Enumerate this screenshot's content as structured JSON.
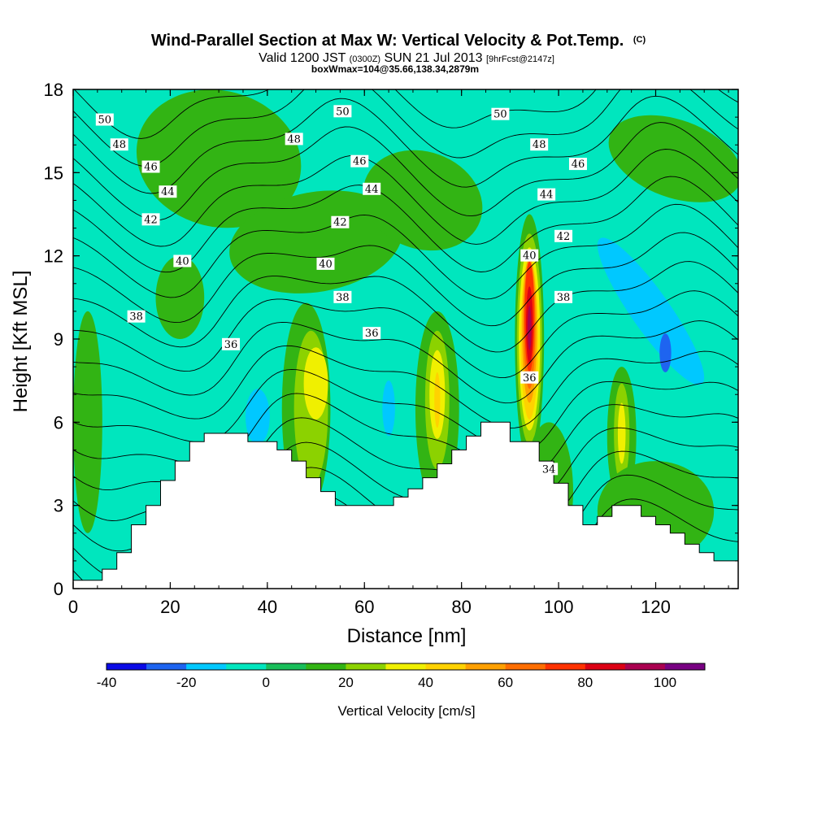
{
  "header": {
    "title": "Wind-Parallel Section at Max W: Vertical Velocity & Pot.Temp.",
    "copyright": "(C)",
    "valid_prefix": "Valid 1200 JST",
    "valid_zulu": "(0300Z)",
    "valid_date": "SUN 21 Jul 2013",
    "forecast": "[9hrFcst@2147z]",
    "box_info": "boxWmax=104@35.66,138.34,2879m"
  },
  "chart_data": {
    "type": "heatmap",
    "title": "Wind-Parallel Section at Max W: Vertical Velocity & Pot.Temp.",
    "xlabel": "Distance [nm]",
    "ylabel": "Height [Kft MSL]",
    "xlim": [
      0,
      137
    ],
    "ylim": [
      0,
      18
    ],
    "x_ticks": [
      "0",
      "20",
      "40",
      "60",
      "80",
      "100",
      "120"
    ],
    "y_ticks": [
      "0",
      "3",
      "6",
      "9",
      "12",
      "15",
      "18"
    ],
    "colorbar": {
      "label": "Vertical Velocity [cm/s]",
      "tick_labels": [
        "-40",
        "-20",
        "0",
        "20",
        "40",
        "60",
        "80",
        "100"
      ],
      "levels": [
        -40,
        -30,
        -20,
        -10,
        0,
        10,
        20,
        30,
        40,
        50,
        60,
        70,
        80,
        90,
        100,
        110
      ],
      "colors": [
        "#0a0ae6",
        "#1e64f0",
        "#00c8ff",
        "#00e6be",
        "#19be5a",
        "#32b414",
        "#8cd200",
        "#f0f000",
        "#ffd200",
        "#ffa000",
        "#ff6e00",
        "#ff3200",
        "#dc0014",
        "#aa0050",
        "#780082"
      ]
    },
    "terrain": [
      [
        0,
        0.3
      ],
      [
        6,
        0.3
      ],
      [
        6,
        0.7
      ],
      [
        9,
        0.7
      ],
      [
        9,
        1.3
      ],
      [
        12,
        1.3
      ],
      [
        12,
        2.3
      ],
      [
        15,
        2.3
      ],
      [
        15,
        3.0
      ],
      [
        18,
        3.0
      ],
      [
        18,
        3.9
      ],
      [
        21,
        3.9
      ],
      [
        21,
        4.6
      ],
      [
        24,
        4.6
      ],
      [
        24,
        5.3
      ],
      [
        27,
        5.3
      ],
      [
        27,
        5.6
      ],
      [
        36,
        5.6
      ],
      [
        36,
        5.3
      ],
      [
        42,
        5.3
      ],
      [
        42,
        5.0
      ],
      [
        45,
        5.0
      ],
      [
        45,
        4.6
      ],
      [
        48,
        4.6
      ],
      [
        48,
        4.0
      ],
      [
        51,
        4.0
      ],
      [
        51,
        3.5
      ],
      [
        54,
        3.5
      ],
      [
        54,
        3.0
      ],
      [
        66,
        3.0
      ],
      [
        66,
        3.3
      ],
      [
        69,
        3.3
      ],
      [
        69,
        3.6
      ],
      [
        72,
        3.6
      ],
      [
        72,
        4.0
      ],
      [
        75,
        4.0
      ],
      [
        75,
        4.5
      ],
      [
        78,
        4.5
      ],
      [
        78,
        5.0
      ],
      [
        81,
        5.0
      ],
      [
        81,
        5.5
      ],
      [
        84,
        5.5
      ],
      [
        84,
        6.0
      ],
      [
        90,
        6.0
      ],
      [
        90,
        5.3
      ],
      [
        96,
        5.3
      ],
      [
        96,
        4.6
      ],
      [
        99,
        4.6
      ],
      [
        99,
        3.8
      ],
      [
        102,
        3.8
      ],
      [
        102,
        3.0
      ],
      [
        105,
        3.0
      ],
      [
        105,
        2.3
      ],
      [
        108,
        2.3
      ],
      [
        108,
        2.6
      ],
      [
        111,
        2.6
      ],
      [
        111,
        3.0
      ],
      [
        117,
        3.0
      ],
      [
        117,
        2.6
      ],
      [
        120,
        2.6
      ],
      [
        120,
        2.3
      ],
      [
        123,
        2.3
      ],
      [
        123,
        2.0
      ],
      [
        126,
        2.0
      ],
      [
        126,
        1.6
      ],
      [
        129,
        1.6
      ],
      [
        129,
        1.3
      ],
      [
        132,
        1.3
      ],
      [
        132,
        1.0
      ],
      [
        137,
        1.0
      ]
    ],
    "w_features": [
      {
        "value": 10,
        "x": 30,
        "y": 15.5,
        "rx": 14,
        "ry": 3,
        "rot": -75
      },
      {
        "value": 10,
        "x": 22,
        "y": 10.5,
        "rx": 5,
        "ry": 1.5,
        "rot": 0
      },
      {
        "value": 10,
        "x": 50,
        "y": 12.5,
        "rx": 18,
        "ry": 1.8,
        "rot": -10
      },
      {
        "value": 10,
        "x": 72,
        "y": 14.0,
        "rx": 10,
        "ry": 2.2,
        "rot": -70
      },
      {
        "value": 10,
        "x": 124,
        "y": 15.5,
        "rx": 8,
        "ry": 2.5,
        "rot": -70
      },
      {
        "value": 10,
        "x": 3,
        "y": 6.0,
        "rx": 3,
        "ry": 4,
        "rot": 0
      },
      {
        "value": -10,
        "x": 118,
        "y": 10.5,
        "rx": 7,
        "ry": 4.5,
        "rot": -30
      },
      {
        "value": -10,
        "x": 100,
        "y": 15.5,
        "rx": 3,
        "ry": 3,
        "rot": 0
      },
      {
        "value": -10,
        "x": 97,
        "y": 9.5,
        "rx": 2,
        "ry": 6,
        "rot": 0
      },
      {
        "value": -20,
        "x": 119,
        "y": 10.0,
        "rx": 4,
        "ry": 3.2,
        "rot": -35
      },
      {
        "value": -30,
        "x": 122,
        "y": 8.5,
        "rx": 1.2,
        "ry": 0.7,
        "rot": 0
      },
      {
        "value": -10,
        "x": 37,
        "y": 6.8,
        "rx": 7,
        "ry": 2.2,
        "rot": 0
      },
      {
        "value": -20,
        "x": 38,
        "y": 6.2,
        "rx": 2.5,
        "ry": 1.0,
        "rot": 0
      },
      {
        "value": -10,
        "x": 64,
        "y": 6.5,
        "rx": 7,
        "ry": 2.7,
        "rot": 0
      },
      {
        "value": -20,
        "x": 65,
        "y": 6.5,
        "rx": 1.3,
        "ry": 1.0,
        "rot": 0
      },
      {
        "value": 10,
        "x": 48,
        "y": 6.5,
        "rx": 5,
        "ry": 3.8,
        "rot": 0
      },
      {
        "value": 20,
        "x": 49,
        "y": 6.5,
        "rx": 3.5,
        "ry": 2.8,
        "rot": 0
      },
      {
        "value": 30,
        "x": 50,
        "y": 7.4,
        "rx": 2.5,
        "ry": 1.3,
        "rot": 0
      },
      {
        "value": 10,
        "x": 75,
        "y": 6.5,
        "rx": 4.5,
        "ry": 3.5,
        "rot": 0
      },
      {
        "value": 20,
        "x": 75,
        "y": 6.8,
        "rx": 2.5,
        "ry": 2.5,
        "rot": 0
      },
      {
        "value": 30,
        "x": 75,
        "y": 7.0,
        "rx": 1.6,
        "ry": 1.6,
        "rot": 0
      },
      {
        "value": 40,
        "x": 75,
        "y": 6.8,
        "rx": 0.6,
        "ry": 1.0,
        "rot": 0
      },
      {
        "value": 10,
        "x": 113,
        "y": 5.5,
        "rx": 3,
        "ry": 2.5,
        "rot": 0
      },
      {
        "value": 20,
        "x": 113,
        "y": 5.6,
        "rx": 1.6,
        "ry": 1.8,
        "rot": 0
      },
      {
        "value": 30,
        "x": 113,
        "y": 5.6,
        "rx": 0.8,
        "ry": 1.1,
        "rot": 0
      },
      {
        "value": 10,
        "x": 94,
        "y": 9.0,
        "rx": 3.0,
        "ry": 4.5,
        "rot": 0
      },
      {
        "value": 20,
        "x": 94,
        "y": 9.0,
        "rx": 2.6,
        "ry": 3.8,
        "rot": 0
      },
      {
        "value": 30,
        "x": 94,
        "y": 9.0,
        "rx": 2.2,
        "ry": 3.3,
        "rot": 0
      },
      {
        "value": 40,
        "x": 94,
        "y": 9.0,
        "rx": 1.8,
        "ry": 2.9,
        "rot": 0
      },
      {
        "value": 50,
        "x": 94,
        "y": 9.3,
        "rx": 1.5,
        "ry": 2.6,
        "rot": 0
      },
      {
        "value": 60,
        "x": 94,
        "y": 9.5,
        "rx": 1.2,
        "ry": 2.3,
        "rot": 0
      },
      {
        "value": 70,
        "x": 94,
        "y": 9.8,
        "rx": 1.0,
        "ry": 2.0,
        "rot": 0
      },
      {
        "value": 80,
        "x": 94,
        "y": 9.5,
        "rx": 0.7,
        "ry": 1.4,
        "rot": 0
      },
      {
        "value": 90,
        "x": 94,
        "y": 9.4,
        "rx": 0.4,
        "ry": 0.8,
        "rot": 0
      },
      {
        "value": 10,
        "x": 120,
        "y": 2.8,
        "rx": 12,
        "ry": 1.8,
        "rot": 0
      },
      {
        "value": 10,
        "x": 98,
        "y": 3.5,
        "rx": 5,
        "ry": 2.5,
        "rot": 0
      }
    ],
    "theta_contours": {
      "min": 32,
      "max": 51,
      "step": 1
    },
    "theta_labels": [
      {
        "text": "50",
        "x": 6.5,
        "y": 16.9
      },
      {
        "text": "48",
        "x": 9.5,
        "y": 16.0
      },
      {
        "text": "46",
        "x": 16,
        "y": 15.2
      },
      {
        "text": "44",
        "x": 19.5,
        "y": 14.3
      },
      {
        "text": "42",
        "x": 16,
        "y": 13.3
      },
      {
        "text": "40",
        "x": 22.5,
        "y": 11.8
      },
      {
        "text": "38",
        "x": 13,
        "y": 9.8
      },
      {
        "text": "36",
        "x": 32.5,
        "y": 8.8
      },
      {
        "text": "50",
        "x": 55.5,
        "y": 17.2
      },
      {
        "text": "48",
        "x": 45.5,
        "y": 16.2
      },
      {
        "text": "46",
        "x": 59,
        "y": 15.4
      },
      {
        "text": "44",
        "x": 61.5,
        "y": 14.4
      },
      {
        "text": "42",
        "x": 55,
        "y": 13.2
      },
      {
        "text": "40",
        "x": 52,
        "y": 11.7
      },
      {
        "text": "38",
        "x": 55.5,
        "y": 10.5
      },
      {
        "text": "36",
        "x": 61.5,
        "y": 9.2
      },
      {
        "text": "50",
        "x": 88,
        "y": 17.1
      },
      {
        "text": "48",
        "x": 96,
        "y": 16.0
      },
      {
        "text": "46",
        "x": 104,
        "y": 15.3
      },
      {
        "text": "44",
        "x": 97.5,
        "y": 14.2
      },
      {
        "text": "42",
        "x": 101,
        "y": 12.7
      },
      {
        "text": "40",
        "x": 94,
        "y": 12.0
      },
      {
        "text": "38",
        "x": 101,
        "y": 10.5
      },
      {
        "text": "36",
        "x": 94,
        "y": 7.6
      },
      {
        "text": "34",
        "x": 98,
        "y": 4.3
      }
    ]
  }
}
